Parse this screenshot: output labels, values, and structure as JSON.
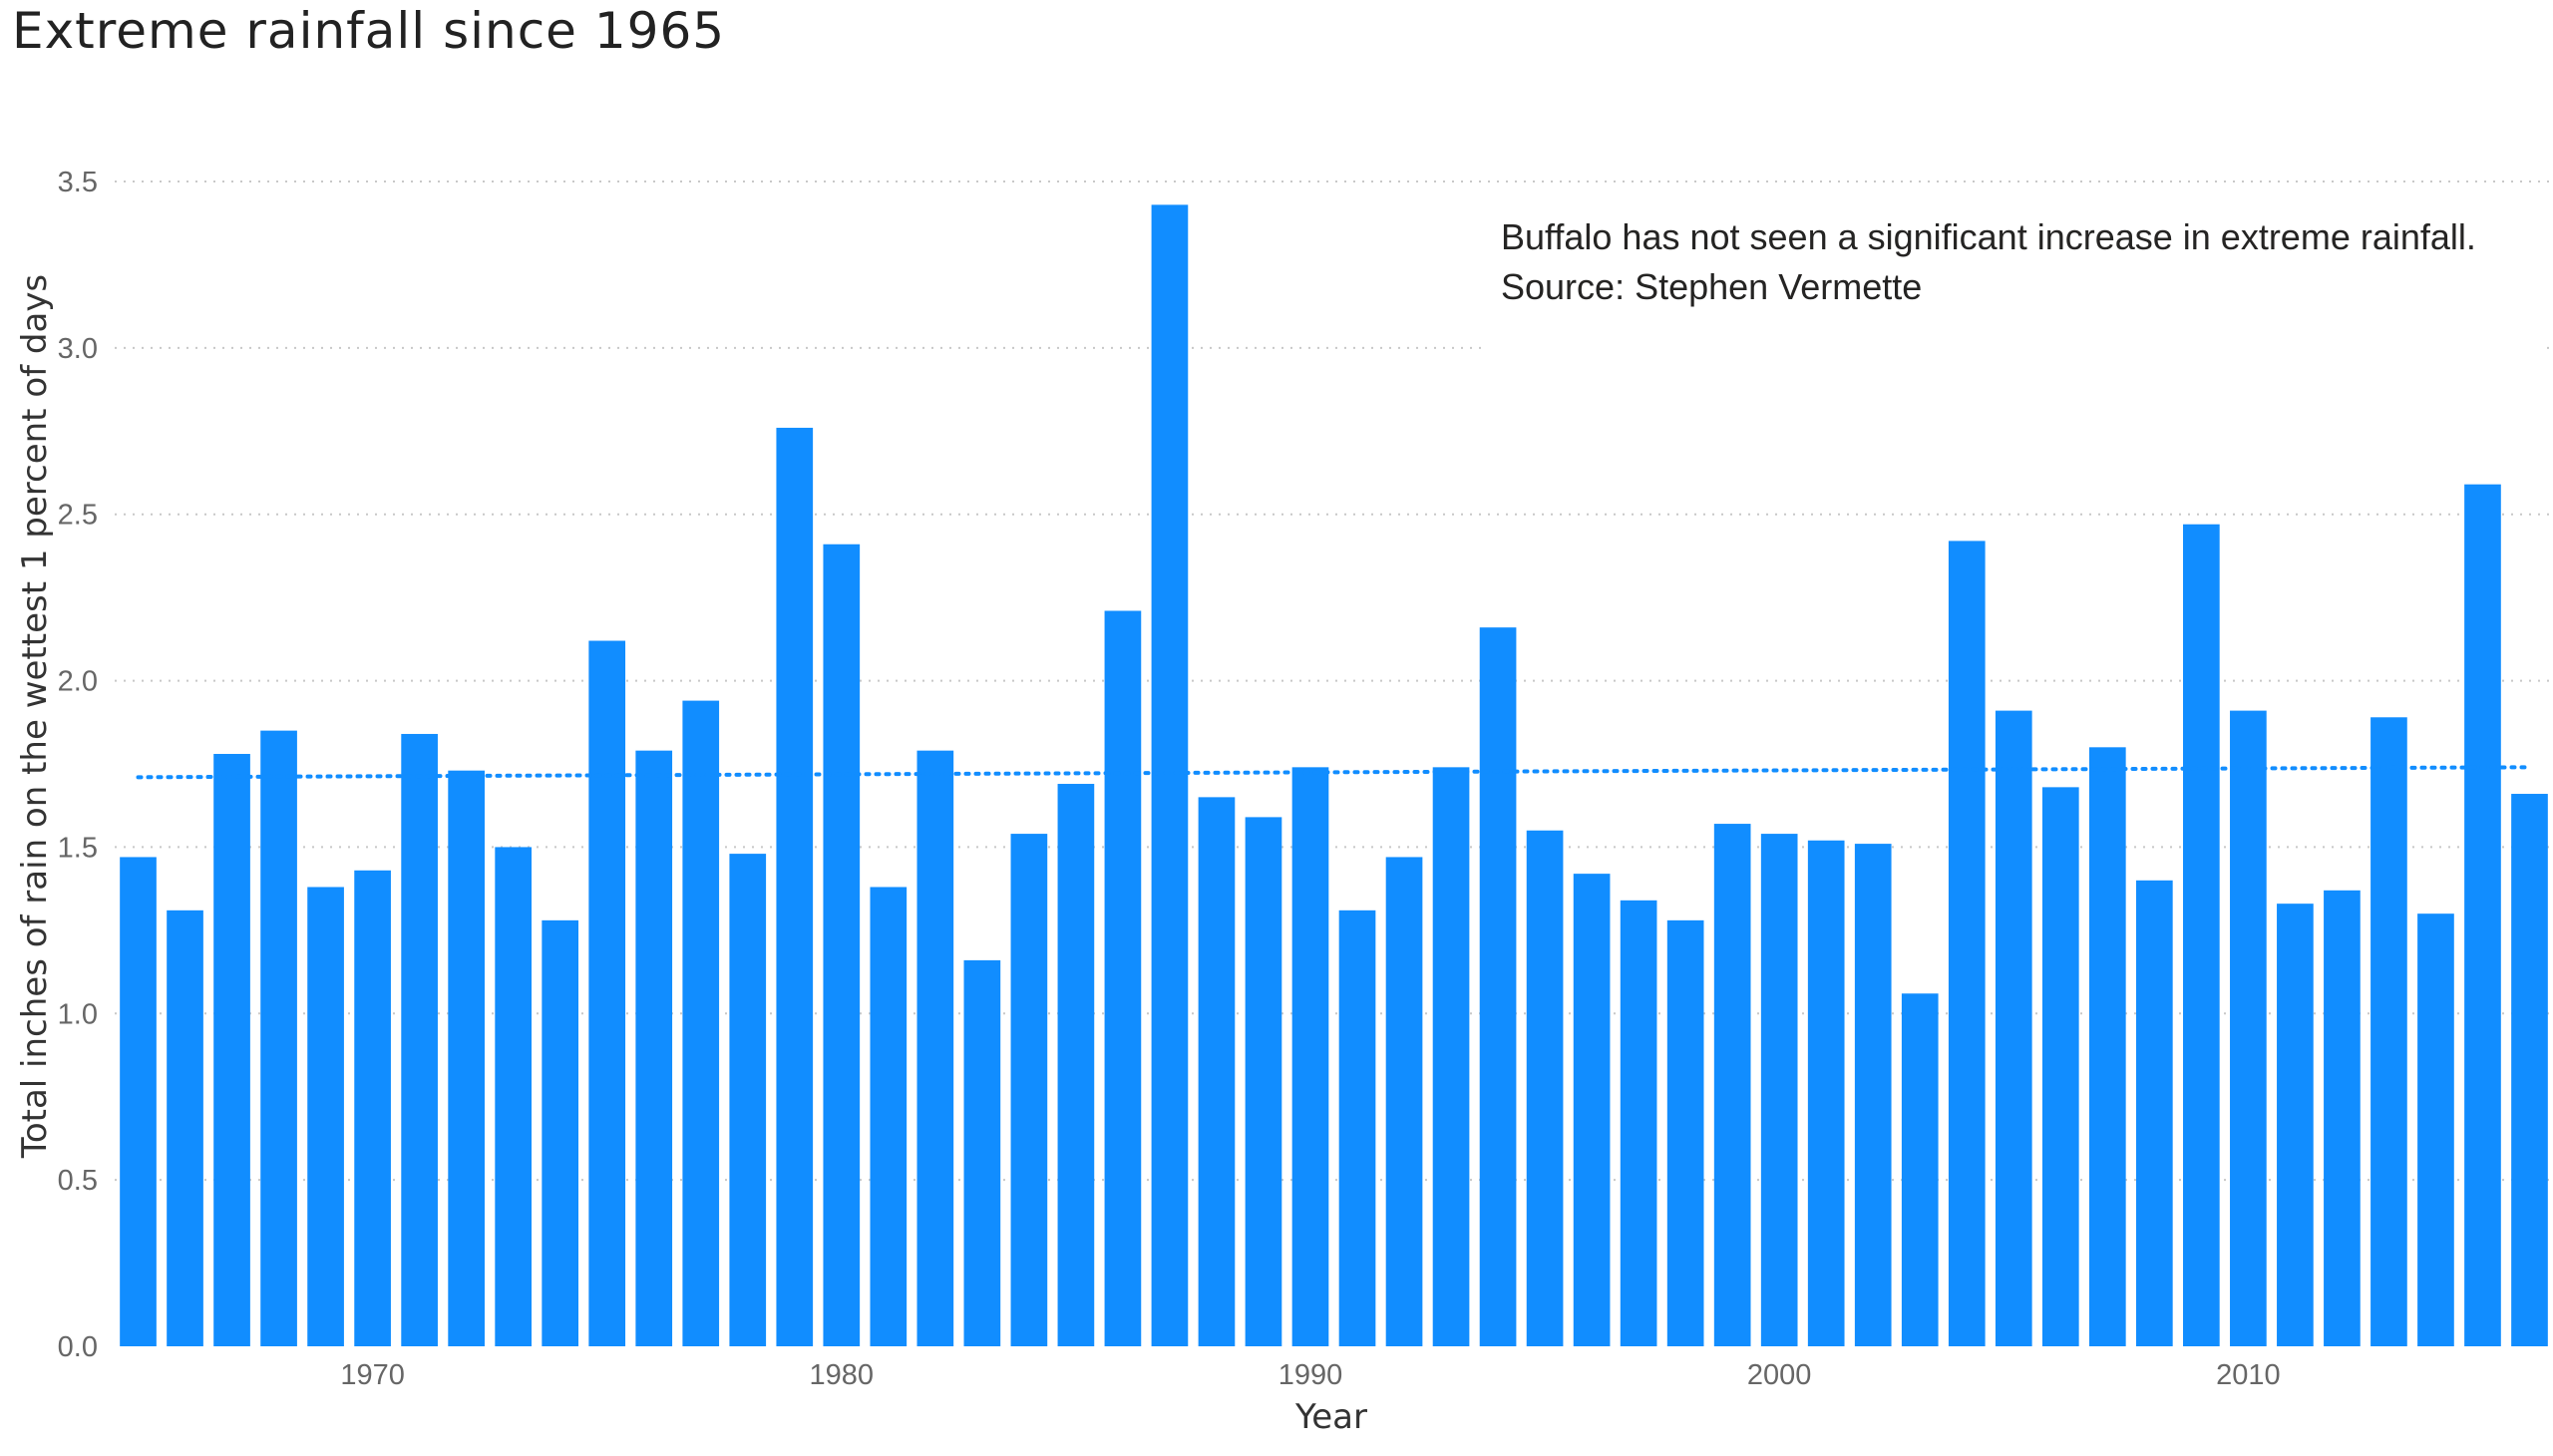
{
  "chart_data": {
    "type": "bar",
    "title": "Extreme rainfall since 1965",
    "xlabel": "Year",
    "ylabel": "Total inches of rain on the wettest 1 percent of days",
    "ylim": [
      0,
      3.5
    ],
    "yticks": [
      "0.0",
      "0.5",
      "1.0",
      "1.5",
      "2.0",
      "2.5",
      "3.0",
      "3.5"
    ],
    "xticks": [
      "1970",
      "1980",
      "1990",
      "2000",
      "2010"
    ],
    "grid": true,
    "bar_color": "#118DFF",
    "trend_color": "#118DFF",
    "trendline": {
      "style": "dotted",
      "start": 1.71,
      "end": 1.74
    },
    "annotation": [
      "Buffalo has not seen a significant increase in extreme rainfall.",
      "Source: Stephen Vermette"
    ],
    "categories": [
      1965,
      1966,
      1967,
      1968,
      1969,
      1970,
      1971,
      1972,
      1973,
      1974,
      1975,
      1976,
      1977,
      1978,
      1979,
      1980,
      1981,
      1982,
      1983,
      1984,
      1985,
      1986,
      1987,
      1988,
      1989,
      1990,
      1991,
      1992,
      1993,
      1994,
      1995,
      1996,
      1997,
      1998,
      1999,
      2000,
      2001,
      2002,
      2003,
      2004,
      2005,
      2006,
      2007,
      2008,
      2009,
      2010,
      2011,
      2012,
      2013,
      2014,
      2015,
      2016
    ],
    "values": [
      1.47,
      1.31,
      1.78,
      1.85,
      1.38,
      1.43,
      1.84,
      1.73,
      1.5,
      1.28,
      2.12,
      1.79,
      1.94,
      1.48,
      2.76,
      2.41,
      1.38,
      1.79,
      1.16,
      1.54,
      1.69,
      2.21,
      3.43,
      1.65,
      1.59,
      1.74,
      1.31,
      1.47,
      1.74,
      2.16,
      1.55,
      1.42,
      1.34,
      1.28,
      1.57,
      1.54,
      1.52,
      1.51,
      1.06,
      2.42,
      1.91,
      1.68,
      1.8,
      1.4,
      2.47,
      1.91,
      1.33,
      1.37,
      1.89,
      1.3,
      2.59,
      1.66
    ]
  }
}
